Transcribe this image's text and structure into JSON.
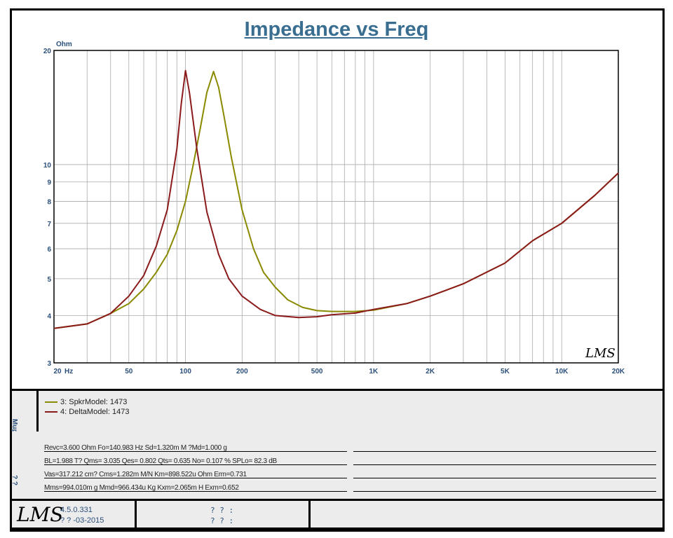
{
  "chart_data": {
    "type": "line",
    "title": "Impedance vs Freq",
    "ylabel": "Ohm",
    "xlabel": "Hz",
    "xscale": "log",
    "yscale": "log",
    "xlim": [
      20,
      20000
    ],
    "ylim": [
      3,
      20
    ],
    "xticks": [
      {
        "v": 20,
        "l": "20"
      },
      {
        "v": 50,
        "l": "50"
      },
      {
        "v": 100,
        "l": "100"
      },
      {
        "v": 200,
        "l": "200"
      },
      {
        "v": 500,
        "l": "500"
      },
      {
        "v": 1000,
        "l": "1K"
      },
      {
        "v": 2000,
        "l": "2K"
      },
      {
        "v": 5000,
        "l": "5K"
      },
      {
        "v": 10000,
        "l": "10K"
      },
      {
        "v": 20000,
        "l": "20K"
      }
    ],
    "yticks": [
      {
        "v": 3,
        "l": "3"
      },
      {
        "v": 4,
        "l": "4"
      },
      {
        "v": 5,
        "l": "5"
      },
      {
        "v": 6,
        "l": "6"
      },
      {
        "v": 7,
        "l": "7"
      },
      {
        "v": 8,
        "l": "8"
      },
      {
        "v": 9,
        "l": "9"
      },
      {
        "v": 10,
        "l": "10"
      },
      {
        "v": 20,
        "l": "20"
      }
    ],
    "grid": true,
    "legend_placement": "below",
    "series": [
      {
        "name": "3: SpkrModel: 1473",
        "color": "#8a8a00",
        "x": [
          20,
          30,
          40,
          50,
          60,
          70,
          80,
          90,
          100,
          110,
          120,
          130,
          141,
          150,
          160,
          175,
          200,
          230,
          260,
          300,
          350,
          420,
          500,
          600,
          800,
          1000,
          1500,
          2000,
          3000,
          5000,
          7000,
          10000,
          15000,
          20000
        ],
        "y": [
          3.7,
          3.8,
          4.05,
          4.3,
          4.7,
          5.2,
          5.8,
          6.7,
          8.0,
          10.0,
          12.5,
          15.5,
          17.6,
          16.0,
          13.5,
          10.5,
          7.6,
          6.0,
          5.2,
          4.75,
          4.4,
          4.2,
          4.12,
          4.1,
          4.1,
          4.13,
          4.3,
          4.5,
          4.85,
          5.5,
          6.3,
          7.0,
          8.3,
          9.5
        ]
      },
      {
        "name": "4: DeltaModel: 1473",
        "color": "#8b1a1a",
        "x": [
          20,
          30,
          40,
          50,
          60,
          70,
          80,
          90,
          95,
          100,
          105,
          115,
          130,
          150,
          170,
          200,
          250,
          300,
          400,
          500,
          600,
          800,
          1000,
          1500,
          2000,
          3000,
          5000,
          7000,
          10000,
          15000,
          20000
        ],
        "y": [
          3.7,
          3.8,
          4.05,
          4.5,
          5.1,
          6.1,
          7.6,
          11.0,
          14.5,
          17.7,
          15.5,
          11.0,
          7.5,
          5.8,
          5.0,
          4.5,
          4.15,
          4.0,
          3.95,
          3.97,
          4.02,
          4.06,
          4.15,
          4.3,
          4.5,
          4.85,
          5.5,
          6.3,
          7.0,
          8.3,
          9.5
        ]
      }
    ]
  },
  "logo": "LMS",
  "side_labels": {
    "legend": "Mup",
    "params": "? ?"
  },
  "params": [
    "Revc=3.600 Ohm  Fo=140.983 Hz  Sd=1.320m M ?Md=1.000 g",
    "BL=1.988 T?   Qms= 3.035  Qes= 0.802  Qts= 0.635  No= 0.107 %   SPLo= 82.3 dB",
    "Vas=317.212 cm? Cms=1.282m M/N  Km=898.522u Ohm  Erm=0.731",
    "Mms=994.010m g  Mmd=966.434u Kg  Kxm=2.065m H  Exm=0.652"
  ],
  "footer": {
    "version": "4.5.0.331",
    "date": "? ?  -03-2015",
    "field1": "? ? :",
    "field2": "? ? :"
  }
}
